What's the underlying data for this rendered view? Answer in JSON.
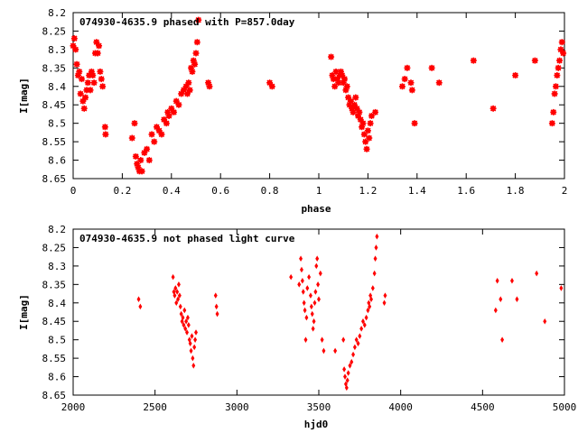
{
  "chart_data": [
    {
      "type": "scatter",
      "title": "074930-4635.9 phased with P=857.0day",
      "xlabel": "phase",
      "ylabel": "I[mag]",
      "xlim": [
        0,
        2
      ],
      "ylim": [
        8.65,
        8.2
      ],
      "y_inverted": true,
      "grid": false,
      "marker": "asterisk",
      "color": "#ff0000",
      "x_ticks": [
        {
          "v": 0,
          "label": "0"
        },
        {
          "v": 0.2,
          "label": "0.2"
        },
        {
          "v": 0.4,
          "label": "0.4"
        },
        {
          "v": 0.6,
          "label": "0.6"
        },
        {
          "v": 0.8,
          "label": "0.8"
        },
        {
          "v": 1,
          "label": "1"
        },
        {
          "v": 1.2,
          "label": "1.2"
        },
        {
          "v": 1.4,
          "label": "1.4"
        },
        {
          "v": 1.6,
          "label": "1.6"
        },
        {
          "v": 1.8,
          "label": "1.8"
        },
        {
          "v": 2,
          "label": "2"
        }
      ],
      "y_ticks": [
        {
          "v": 8.2,
          "label": "8.2"
        },
        {
          "v": 8.25,
          "label": "8.25"
        },
        {
          "v": 8.3,
          "label": "8.3"
        },
        {
          "v": 8.35,
          "label": "8.35"
        },
        {
          "v": 8.4,
          "label": "8.4"
        },
        {
          "v": 8.45,
          "label": "8.45"
        },
        {
          "v": 8.5,
          "label": "8.5"
        },
        {
          "v": 8.55,
          "label": "8.55"
        },
        {
          "v": 8.6,
          "label": "8.6"
        },
        {
          "v": 8.65,
          "label": "8.65"
        }
      ],
      "points": [
        [
          0.0,
          8.29
        ],
        [
          0.005,
          8.27
        ],
        [
          0.01,
          8.3
        ],
        [
          0.015,
          8.34
        ],
        [
          0.02,
          8.37
        ],
        [
          0.025,
          8.36
        ],
        [
          0.03,
          8.42
        ],
        [
          0.035,
          8.38
        ],
        [
          0.04,
          8.44
        ],
        [
          0.045,
          8.46
        ],
        [
          0.05,
          8.43
        ],
        [
          0.055,
          8.41
        ],
        [
          0.06,
          8.39
        ],
        [
          0.065,
          8.37
        ],
        [
          0.07,
          8.41
        ],
        [
          0.075,
          8.36
        ],
        [
          0.08,
          8.37
        ],
        [
          0.085,
          8.39
        ],
        [
          0.09,
          8.31
        ],
        [
          0.095,
          8.28
        ],
        [
          0.1,
          8.31
        ],
        [
          0.105,
          8.29
        ],
        [
          0.11,
          8.36
        ],
        [
          0.115,
          8.38
        ],
        [
          0.12,
          8.4
        ],
        [
          0.13,
          8.51
        ],
        [
          0.132,
          8.53
        ],
        [
          0.24,
          8.54
        ],
        [
          0.25,
          8.5
        ],
        [
          0.255,
          8.59
        ],
        [
          0.26,
          8.61
        ],
        [
          0.265,
          8.62
        ],
        [
          0.27,
          8.63
        ],
        [
          0.275,
          8.6
        ],
        [
          0.28,
          8.63
        ],
        [
          0.29,
          8.58
        ],
        [
          0.3,
          8.57
        ],
        [
          0.31,
          8.6
        ],
        [
          0.32,
          8.53
        ],
        [
          0.33,
          8.55
        ],
        [
          0.34,
          8.51
        ],
        [
          0.35,
          8.52
        ],
        [
          0.36,
          8.53
        ],
        [
          0.37,
          8.49
        ],
        [
          0.38,
          8.5
        ],
        [
          0.385,
          8.47
        ],
        [
          0.39,
          8.48
        ],
        [
          0.4,
          8.46
        ],
        [
          0.41,
          8.47
        ],
        [
          0.42,
          8.44
        ],
        [
          0.43,
          8.45
        ],
        [
          0.44,
          8.42
        ],
        [
          0.45,
          8.41
        ],
        [
          0.46,
          8.4
        ],
        [
          0.465,
          8.42
        ],
        [
          0.47,
          8.39
        ],
        [
          0.475,
          8.41
        ],
        [
          0.48,
          8.35
        ],
        [
          0.485,
          8.36
        ],
        [
          0.49,
          8.33
        ],
        [
          0.495,
          8.34
        ],
        [
          0.5,
          8.31
        ],
        [
          0.505,
          8.28
        ],
        [
          0.51,
          8.22
        ],
        [
          0.55,
          8.39
        ],
        [
          0.555,
          8.4
        ],
        [
          0.8,
          8.39
        ],
        [
          0.81,
          8.4
        ],
        [
          1.05,
          8.32
        ],
        [
          1.055,
          8.37
        ],
        [
          1.06,
          8.38
        ],
        [
          1.065,
          8.4
        ],
        [
          1.07,
          8.36
        ],
        [
          1.075,
          8.38
        ],
        [
          1.08,
          8.39
        ],
        [
          1.085,
          8.37
        ],
        [
          1.09,
          8.36
        ],
        [
          1.095,
          8.37
        ],
        [
          1.1,
          8.39
        ],
        [
          1.105,
          8.38
        ],
        [
          1.11,
          8.41
        ],
        [
          1.115,
          8.4
        ],
        [
          1.12,
          8.43
        ],
        [
          1.125,
          8.45
        ],
        [
          1.13,
          8.44
        ],
        [
          1.135,
          8.46
        ],
        [
          1.14,
          8.47
        ],
        [
          1.145,
          8.45
        ],
        [
          1.15,
          8.43
        ],
        [
          1.155,
          8.46
        ],
        [
          1.16,
          8.48
        ],
        [
          1.165,
          8.47
        ],
        [
          1.17,
          8.49
        ],
        [
          1.175,
          8.51
        ],
        [
          1.18,
          8.5
        ],
        [
          1.185,
          8.53
        ],
        [
          1.19,
          8.55
        ],
        [
          1.195,
          8.57
        ],
        [
          1.2,
          8.52
        ],
        [
          1.205,
          8.54
        ],
        [
          1.21,
          8.5
        ],
        [
          1.215,
          8.48
        ],
        [
          1.23,
          8.47
        ],
        [
          1.34,
          8.4
        ],
        [
          1.35,
          8.38
        ],
        [
          1.36,
          8.35
        ],
        [
          1.375,
          8.39
        ],
        [
          1.38,
          8.41
        ],
        [
          1.39,
          8.5
        ],
        [
          1.46,
          8.35
        ],
        [
          1.49,
          8.39
        ],
        [
          1.63,
          8.33
        ],
        [
          1.71,
          8.46
        ],
        [
          1.8,
          8.37
        ],
        [
          1.88,
          8.33
        ],
        [
          1.95,
          8.5
        ],
        [
          1.955,
          8.47
        ],
        [
          1.96,
          8.42
        ],
        [
          1.965,
          8.4
        ],
        [
          1.97,
          8.37
        ],
        [
          1.975,
          8.35
        ],
        [
          1.98,
          8.33
        ],
        [
          1.985,
          8.3
        ],
        [
          1.99,
          8.28
        ],
        [
          1.995,
          8.31
        ]
      ]
    },
    {
      "type": "scatter",
      "title": "074930-4635.9 not phased light curve",
      "xlabel": "hjd0",
      "ylabel": "I[mag]",
      "xlim": [
        2000,
        5000
      ],
      "ylim": [
        8.65,
        8.2
      ],
      "y_inverted": true,
      "grid": false,
      "marker": "diamond",
      "color": "#ff0000",
      "x_ticks": [
        {
          "v": 2000,
          "label": "2000"
        },
        {
          "v": 2500,
          "label": "2500"
        },
        {
          "v": 3000,
          "label": "3000"
        },
        {
          "v": 3500,
          "label": "3500"
        },
        {
          "v": 4000,
          "label": "4000"
        },
        {
          "v": 4500,
          "label": "4500"
        },
        {
          "v": 5000,
          "label": "5000"
        }
      ],
      "y_ticks": [
        {
          "v": 8.2,
          "label": "8.2"
        },
        {
          "v": 8.25,
          "label": "8.25"
        },
        {
          "v": 8.3,
          "label": "8.3"
        },
        {
          "v": 8.35,
          "label": "8.35"
        },
        {
          "v": 8.4,
          "label": "8.4"
        },
        {
          "v": 8.45,
          "label": "8.45"
        },
        {
          "v": 8.5,
          "label": "8.5"
        },
        {
          "v": 8.55,
          "label": "8.55"
        },
        {
          "v": 8.6,
          "label": "8.6"
        },
        {
          "v": 8.65,
          "label": "8.65"
        }
      ],
      "points": [
        [
          2400,
          8.39
        ],
        [
          2410,
          8.41
        ],
        [
          2610,
          8.33
        ],
        [
          2615,
          8.37
        ],
        [
          2620,
          8.38
        ],
        [
          2625,
          8.36
        ],
        [
          2630,
          8.4
        ],
        [
          2635,
          8.37
        ],
        [
          2640,
          8.39
        ],
        [
          2645,
          8.35
        ],
        [
          2650,
          8.38
        ],
        [
          2655,
          8.41
        ],
        [
          2660,
          8.43
        ],
        [
          2665,
          8.45
        ],
        [
          2670,
          8.44
        ],
        [
          2675,
          8.46
        ],
        [
          2680,
          8.42
        ],
        [
          2685,
          8.47
        ],
        [
          2690,
          8.45
        ],
        [
          2695,
          8.48
        ],
        [
          2700,
          8.44
        ],
        [
          2705,
          8.46
        ],
        [
          2710,
          8.5
        ],
        [
          2715,
          8.51
        ],
        [
          2720,
          8.53
        ],
        [
          2725,
          8.49
        ],
        [
          2730,
          8.55
        ],
        [
          2735,
          8.57
        ],
        [
          2740,
          8.52
        ],
        [
          2745,
          8.5
        ],
        [
          2750,
          8.48
        ],
        [
          2870,
          8.38
        ],
        [
          2875,
          8.41
        ],
        [
          2880,
          8.43
        ],
        [
          3330,
          8.33
        ],
        [
          3380,
          8.35
        ],
        [
          3390,
          8.28
        ],
        [
          3395,
          8.31
        ],
        [
          3400,
          8.34
        ],
        [
          3405,
          8.37
        ],
        [
          3410,
          8.4
        ],
        [
          3415,
          8.42
        ],
        [
          3420,
          8.5
        ],
        [
          3425,
          8.44
        ],
        [
          3430,
          8.36
        ],
        [
          3440,
          8.33
        ],
        [
          3450,
          8.38
        ],
        [
          3455,
          8.41
        ],
        [
          3460,
          8.43
        ],
        [
          3465,
          8.47
        ],
        [
          3470,
          8.45
        ],
        [
          3475,
          8.4
        ],
        [
          3480,
          8.37
        ],
        [
          3485,
          8.3
        ],
        [
          3490,
          8.28
        ],
        [
          3495,
          8.35
        ],
        [
          3500,
          8.39
        ],
        [
          3510,
          8.32
        ],
        [
          3520,
          8.5
        ],
        [
          3530,
          8.53
        ],
        [
          3600,
          8.53
        ],
        [
          3650,
          8.5
        ],
        [
          3655,
          8.58
        ],
        [
          3660,
          8.6
        ],
        [
          3665,
          8.62
        ],
        [
          3670,
          8.63
        ],
        [
          3675,
          8.61
        ],
        [
          3680,
          8.59
        ],
        [
          3690,
          8.57
        ],
        [
          3700,
          8.56
        ],
        [
          3710,
          8.54
        ],
        [
          3720,
          8.52
        ],
        [
          3730,
          8.5
        ],
        [
          3740,
          8.51
        ],
        [
          3750,
          8.49
        ],
        [
          3760,
          8.47
        ],
        [
          3770,
          8.45
        ],
        [
          3780,
          8.46
        ],
        [
          3790,
          8.44
        ],
        [
          3800,
          8.42
        ],
        [
          3805,
          8.4
        ],
        [
          3810,
          8.41
        ],
        [
          3815,
          8.38
        ],
        [
          3820,
          8.39
        ],
        [
          3830,
          8.36
        ],
        [
          3840,
          8.32
        ],
        [
          3845,
          8.28
        ],
        [
          3850,
          8.25
        ],
        [
          3855,
          8.22
        ],
        [
          3900,
          8.4
        ],
        [
          3905,
          8.38
        ],
        [
          4580,
          8.42
        ],
        [
          4590,
          8.34
        ],
        [
          4610,
          8.39
        ],
        [
          4620,
          8.5
        ],
        [
          4680,
          8.34
        ],
        [
          4710,
          8.39
        ],
        [
          4830,
          8.32
        ],
        [
          4880,
          8.45
        ],
        [
          4980,
          8.36
        ]
      ]
    }
  ]
}
